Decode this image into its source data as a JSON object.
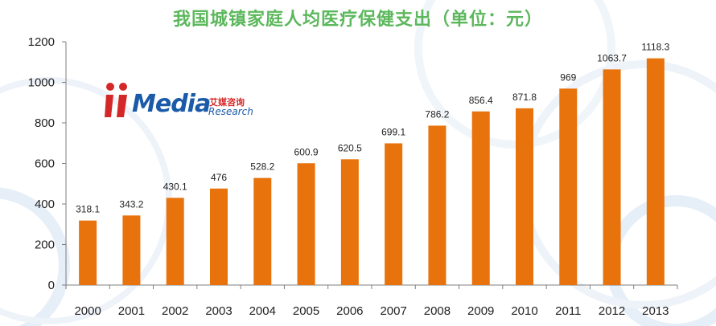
{
  "chart_data": {
    "type": "bar",
    "title": "我国城镇家庭人均医疗保健支出（单位：元）",
    "categories": [
      "2000",
      "2001",
      "2002",
      "2003",
      "2004",
      "2005",
      "2006",
      "2007",
      "2008",
      "2009",
      "2010",
      "2011",
      "2012",
      "2013"
    ],
    "values": [
      318.1,
      343.2,
      430.1,
      476,
      528.2,
      600.9,
      620.5,
      699.1,
      786.2,
      856.4,
      871.8,
      969,
      1063.7,
      1118.3
    ],
    "data_labels": [
      "318.1",
      "343.2",
      "430.1",
      "476",
      "528.2",
      "600.9",
      "620.5",
      "699.1",
      "786.2",
      "856.4",
      "871.8",
      "969",
      "1063.7",
      "1118.3"
    ],
    "ylim": [
      0,
      1200
    ],
    "yticks": [
      0,
      200,
      400,
      600,
      800,
      1000,
      1200
    ],
    "xlabel": "",
    "ylabel": "",
    "grid": false,
    "legend": "none",
    "bar_color": "#e8720c",
    "title_color": "#5cb85c"
  },
  "watermark": {
    "brand": "Media",
    "cn": "艾媒咨询",
    "en": "Research",
    "brand_color": "#1a5aa8",
    "accent_color": "#d42828"
  }
}
